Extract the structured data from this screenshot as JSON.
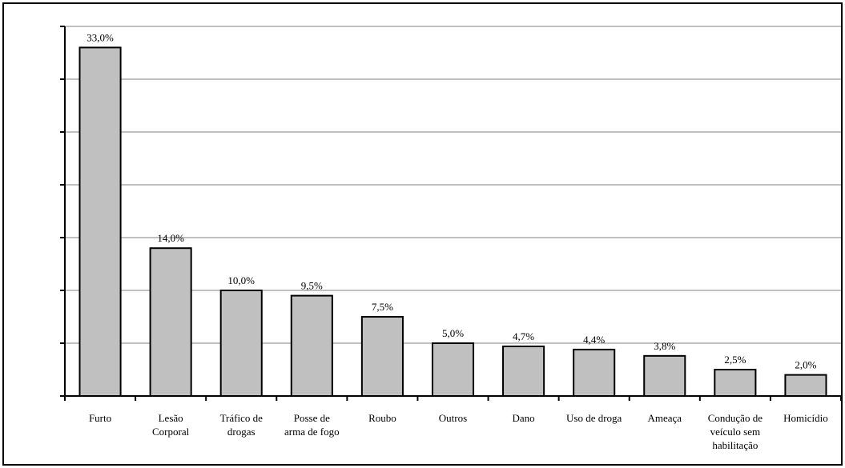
{
  "chart_data": {
    "type": "bar",
    "categories": [
      [
        "Furto"
      ],
      [
        "Lesão",
        "Corporal"
      ],
      [
        "Tráfico de",
        "drogas"
      ],
      [
        "Posse de",
        "arma de fogo"
      ],
      [
        "Roubo"
      ],
      [
        "Outros"
      ],
      [
        "Dano"
      ],
      [
        "Uso de droga"
      ],
      [
        "Ameaça"
      ],
      [
        "Condução de",
        "veículo sem",
        "habilitação"
      ],
      [
        "Homicídio"
      ]
    ],
    "values": [
      33.0,
      14.0,
      10.0,
      9.5,
      7.5,
      5.0,
      4.7,
      4.4,
      3.8,
      2.5,
      2.0
    ],
    "data_labels": [
      "33,0%",
      "14,0%",
      "10,0%",
      "9,5%",
      "7,5%",
      "5,0%",
      "4,7%",
      "4,4%",
      "3,8%",
      "2,5%",
      "2,0%"
    ],
    "ylim": [
      0,
      35
    ],
    "y_tick_step": 5,
    "grid": true,
    "bar_color": "#c0c0c0",
    "bar_edge_color": "#000000",
    "grid_color": "#808080"
  }
}
